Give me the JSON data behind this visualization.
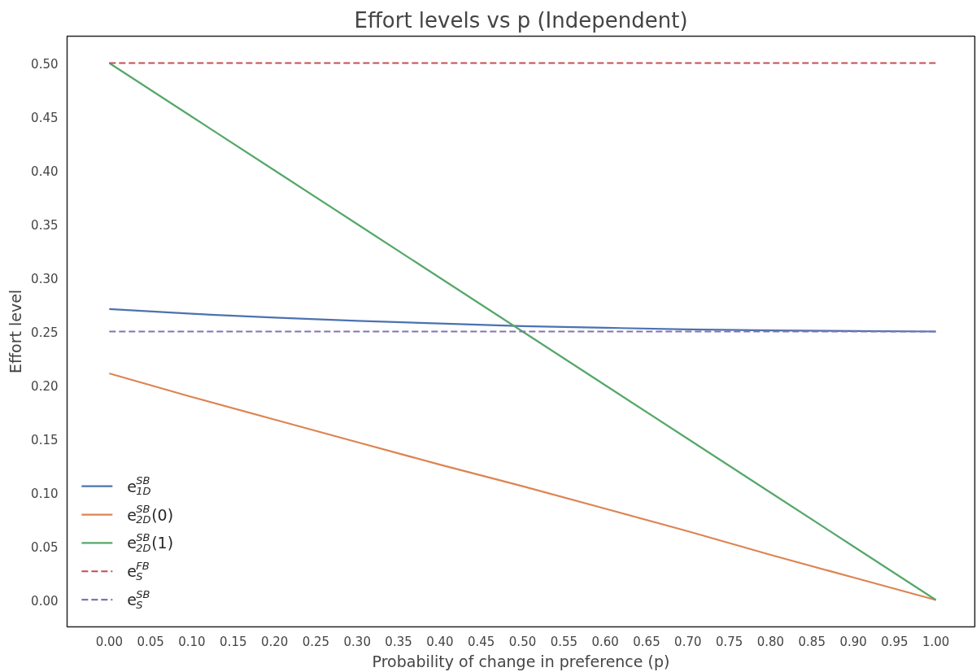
{
  "chart_data": {
    "type": "line",
    "title": "Effort levels vs p (Independent)",
    "xlabel": "Probability of change in preference (p)",
    "ylabel": "Effort level",
    "x": [
      0,
      0.1,
      0.2,
      0.3,
      0.4,
      0.5,
      0.6,
      0.7,
      0.8,
      0.9,
      1.0
    ],
    "series": [
      {
        "name": "e$^{SB}$$_{1D}$",
        "color": "#4c72b0",
        "values": [
          0.271,
          0.2665,
          0.263,
          0.26,
          0.2575,
          0.255,
          0.2535,
          0.252,
          0.251,
          0.2505,
          0.25
        ]
      },
      {
        "name": "e$^{SB}$$_{2D}$(0)",
        "color": "#dd8452",
        "values": [
          0.211,
          0.189,
          0.168,
          0.147,
          0.126,
          0.106,
          0.085,
          0.064,
          0.042,
          0.021,
          0.0
        ]
      },
      {
        "name": "e$^{SB}$$_{2D}$(1)",
        "color": "#55a868",
        "values": [
          0.5,
          0.45,
          0.4,
          0.35,
          0.3,
          0.25,
          0.2,
          0.15,
          0.1,
          0.05,
          0.0
        ]
      },
      {
        "name": "e$^{FB}$$_{S}$",
        "color": "#c44e52",
        "values": [
          0.5,
          0.5,
          0.5,
          0.5,
          0.5,
          0.5,
          0.5,
          0.5,
          0.5,
          0.5,
          0.5
        ],
        "line_style": "dashed"
      },
      {
        "name": "e$^{SB}$$_{S}$",
        "color": "#8172b3",
        "values": [
          0.25,
          0.25,
          0.25,
          0.25,
          0.25,
          0.25,
          0.25,
          0.25,
          0.25,
          0.25,
          0.25
        ],
        "line_style": "dashed"
      }
    ],
    "xlim": [
      -0.051,
      1.047
    ],
    "ylim": [
      -0.025,
      0.525
    ],
    "xticks": [
      {
        "value": 0,
        "label": "0.00"
      },
      {
        "value": 0.05,
        "label": "0.05"
      },
      {
        "value": 0.1,
        "label": "0.10"
      },
      {
        "value": 0.15,
        "label": "0.15"
      },
      {
        "value": 0.2,
        "label": "0.20"
      },
      {
        "value": 0.25,
        "label": "0.25"
      },
      {
        "value": 0.3,
        "label": "0.30"
      },
      {
        "value": 0.35,
        "label": "0.35"
      },
      {
        "value": 0.4,
        "label": "0.40"
      },
      {
        "value": 0.45,
        "label": "0.45"
      },
      {
        "value": 0.5,
        "label": "0.50"
      },
      {
        "value": 0.55,
        "label": "0.55"
      },
      {
        "value": 0.6,
        "label": "0.60"
      },
      {
        "value": 0.65,
        "label": "0.65"
      },
      {
        "value": 0.7,
        "label": "0.70"
      },
      {
        "value": 0.75,
        "label": "0.75"
      },
      {
        "value": 0.8,
        "label": "0.80"
      },
      {
        "value": 0.85,
        "label": "0.85"
      },
      {
        "value": 0.9,
        "label": "0.90"
      },
      {
        "value": 0.95,
        "label": "0.95"
      },
      {
        "value": 1.0,
        "label": "1.00"
      }
    ],
    "yticks": [
      {
        "value": 0,
        "label": "0.00"
      },
      {
        "value": 0.05,
        "label": "0.05"
      },
      {
        "value": 0.1,
        "label": "0.10"
      },
      {
        "value": 0.15,
        "label": "0.15"
      },
      {
        "value": 0.2,
        "label": "0.20"
      },
      {
        "value": 0.25,
        "label": "0.25"
      },
      {
        "value": 0.3,
        "label": "0.30"
      },
      {
        "value": 0.35,
        "label": "0.35"
      },
      {
        "value": 0.4,
        "label": "0.40"
      },
      {
        "value": 0.45,
        "label": "0.45"
      },
      {
        "value": 0.5,
        "label": "0.50"
      }
    ],
    "grid": false,
    "legend": "bottom left",
    "line_style": "solid"
  }
}
